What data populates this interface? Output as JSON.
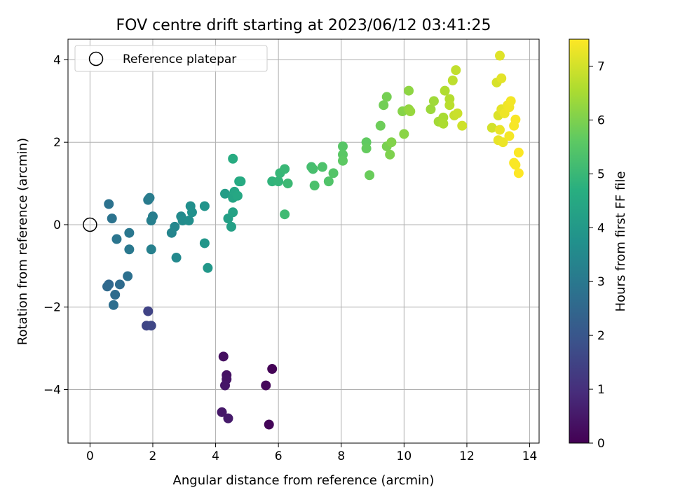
{
  "chart_data": {
    "type": "scatter",
    "title": "FOV centre drift starting at 2023/06/12 03:41:25",
    "xlabel": "Angular distance from reference (arcmin)",
    "ylabel": "Rotation from reference (arcmin)",
    "xlim": [
      -0.7,
      14.3
    ],
    "ylim": [
      -5.3,
      4.5
    ],
    "xticks": [
      0,
      2,
      4,
      6,
      8,
      10,
      12,
      14
    ],
    "yticks": [
      -4,
      -2,
      0,
      2,
      4
    ],
    "grid": true,
    "legend": {
      "position": "top-left",
      "entries": [
        "Reference platepar"
      ]
    },
    "reference_point": {
      "x": 0,
      "y": 0
    },
    "colorbar": {
      "label": "Hours from first FF file",
      "range": [
        0,
        7.5
      ],
      "ticks": [
        0,
        1,
        2,
        3,
        4,
        5,
        6,
        7
      ],
      "colormap": "viridis"
    },
    "points": [
      {
        "x": 5.8,
        "y": -3.5,
        "h": 0.05
      },
      {
        "x": 5.7,
        "y": -4.85,
        "h": 0.1
      },
      {
        "x": 5.6,
        "y": -3.9,
        "h": 0.15
      },
      {
        "x": 4.25,
        "y": -3.2,
        "h": 0.3
      },
      {
        "x": 4.35,
        "y": -3.65,
        "h": 0.35
      },
      {
        "x": 4.35,
        "y": -3.75,
        "h": 0.4
      },
      {
        "x": 4.3,
        "y": -3.9,
        "h": 0.45
      },
      {
        "x": 4.2,
        "y": -4.55,
        "h": 0.5
      },
      {
        "x": 4.4,
        "y": -4.7,
        "h": 0.55
      },
      {
        "x": 1.85,
        "y": -2.1,
        "h": 1.5
      },
      {
        "x": 1.8,
        "y": -2.45,
        "h": 1.55
      },
      {
        "x": 1.95,
        "y": -2.45,
        "h": 1.6
      },
      {
        "x": 0.6,
        "y": -1.45,
        "h": 2.5
      },
      {
        "x": 0.55,
        "y": -1.5,
        "h": 2.55
      },
      {
        "x": 0.95,
        "y": -1.45,
        "h": 2.6
      },
      {
        "x": 0.8,
        "y": -1.7,
        "h": 2.65
      },
      {
        "x": 0.75,
        "y": -1.95,
        "h": 2.7
      },
      {
        "x": 1.2,
        "y": -1.25,
        "h": 2.75
      },
      {
        "x": 0.6,
        "y": 0.5,
        "h": 2.8
      },
      {
        "x": 0.7,
        "y": 0.15,
        "h": 2.85
      },
      {
        "x": 0.85,
        "y": -0.35,
        "h": 2.9
      },
      {
        "x": 1.25,
        "y": -0.2,
        "h": 2.95
      },
      {
        "x": 1.25,
        "y": -0.6,
        "h": 3.0
      },
      {
        "x": 1.85,
        "y": 0.6,
        "h": 3.05
      },
      {
        "x": 1.9,
        "y": 0.65,
        "h": 3.1
      },
      {
        "x": 2.0,
        "y": 0.2,
        "h": 3.15
      },
      {
        "x": 1.95,
        "y": 0.1,
        "h": 3.2
      },
      {
        "x": 1.95,
        "y": -0.6,
        "h": 3.25
      },
      {
        "x": 2.6,
        "y": -0.2,
        "h": 3.4
      },
      {
        "x": 2.7,
        "y": -0.05,
        "h": 3.45
      },
      {
        "x": 2.75,
        "y": -0.8,
        "h": 3.5
      },
      {
        "x": 2.9,
        "y": 0.2,
        "h": 3.55
      },
      {
        "x": 2.95,
        "y": 0.1,
        "h": 3.6
      },
      {
        "x": 3.15,
        "y": 0.1,
        "h": 3.65
      },
      {
        "x": 3.2,
        "y": 0.45,
        "h": 3.7
      },
      {
        "x": 3.25,
        "y": 0.3,
        "h": 3.75
      },
      {
        "x": 3.65,
        "y": 0.45,
        "h": 3.85
      },
      {
        "x": 3.65,
        "y": -0.45,
        "h": 3.9
      },
      {
        "x": 3.75,
        "y": -1.05,
        "h": 3.95
      },
      {
        "x": 4.3,
        "y": 0.75,
        "h": 4.15
      },
      {
        "x": 4.4,
        "y": 0.15,
        "h": 4.2
      },
      {
        "x": 4.5,
        "y": -0.05,
        "h": 4.25
      },
      {
        "x": 4.55,
        "y": 0.3,
        "h": 4.3
      },
      {
        "x": 4.55,
        "y": 0.65,
        "h": 4.35
      },
      {
        "x": 4.6,
        "y": 0.8,
        "h": 4.4
      },
      {
        "x": 4.7,
        "y": 0.7,
        "h": 4.45
      },
      {
        "x": 4.75,
        "y": 1.05,
        "h": 4.5
      },
      {
        "x": 4.8,
        "y": 1.05,
        "h": 4.55
      },
      {
        "x": 4.55,
        "y": 1.6,
        "h": 4.6
      },
      {
        "x": 5.8,
        "y": 1.05,
        "h": 4.85
      },
      {
        "x": 6.0,
        "y": 1.05,
        "h": 4.9
      },
      {
        "x": 6.05,
        "y": 1.25,
        "h": 4.95
      },
      {
        "x": 6.2,
        "y": 1.35,
        "h": 5.0
      },
      {
        "x": 6.3,
        "y": 1.0,
        "h": 5.05
      },
      {
        "x": 6.2,
        "y": 0.25,
        "h": 5.1
      },
      {
        "x": 7.05,
        "y": 1.4,
        "h": 5.2
      },
      {
        "x": 7.1,
        "y": 1.35,
        "h": 5.25
      },
      {
        "x": 7.15,
        "y": 0.95,
        "h": 5.3
      },
      {
        "x": 7.4,
        "y": 1.4,
        "h": 5.35
      },
      {
        "x": 7.6,
        "y": 1.05,
        "h": 5.4
      },
      {
        "x": 7.75,
        "y": 1.25,
        "h": 5.45
      },
      {
        "x": 8.05,
        "y": 1.9,
        "h": 5.5
      },
      {
        "x": 8.05,
        "y": 1.7,
        "h": 5.55
      },
      {
        "x": 8.05,
        "y": 1.55,
        "h": 5.6
      },
      {
        "x": 8.8,
        "y": 2.0,
        "h": 5.65
      },
      {
        "x": 8.8,
        "y": 1.85,
        "h": 5.7
      },
      {
        "x": 8.9,
        "y": 1.2,
        "h": 5.75
      },
      {
        "x": 9.25,
        "y": 2.4,
        "h": 5.8
      },
      {
        "x": 9.35,
        "y": 2.9,
        "h": 5.85
      },
      {
        "x": 9.45,
        "y": 3.1,
        "h": 5.9
      },
      {
        "x": 9.45,
        "y": 1.9,
        "h": 5.95
      },
      {
        "x": 9.55,
        "y": 1.7,
        "h": 6.0
      },
      {
        "x": 9.6,
        "y": 2.0,
        "h": 6.05
      },
      {
        "x": 9.95,
        "y": 2.75,
        "h": 6.1
      },
      {
        "x": 10.0,
        "y": 2.2,
        "h": 6.15
      },
      {
        "x": 10.15,
        "y": 3.25,
        "h": 6.2
      },
      {
        "x": 10.15,
        "y": 2.8,
        "h": 6.25
      },
      {
        "x": 10.2,
        "y": 2.75,
        "h": 6.3
      },
      {
        "x": 10.85,
        "y": 2.8,
        "h": 6.35
      },
      {
        "x": 10.95,
        "y": 3.0,
        "h": 6.4
      },
      {
        "x": 11.1,
        "y": 2.5,
        "h": 6.45
      },
      {
        "x": 11.25,
        "y": 2.6,
        "h": 6.5
      },
      {
        "x": 11.25,
        "y": 2.45,
        "h": 6.55
      },
      {
        "x": 11.3,
        "y": 3.25,
        "h": 6.6
      },
      {
        "x": 11.45,
        "y": 3.05,
        "h": 6.65
      },
      {
        "x": 11.45,
        "y": 2.9,
        "h": 6.7
      },
      {
        "x": 11.55,
        "y": 3.5,
        "h": 6.75
      },
      {
        "x": 11.65,
        "y": 3.75,
        "h": 6.8
      },
      {
        "x": 11.6,
        "y": 2.65,
        "h": 6.85
      },
      {
        "x": 11.7,
        "y": 2.7,
        "h": 6.9
      },
      {
        "x": 11.85,
        "y": 2.4,
        "h": 6.95
      },
      {
        "x": 12.8,
        "y": 2.35,
        "h": 7.0
      },
      {
        "x": 12.95,
        "y": 3.45,
        "h": 7.05
      },
      {
        "x": 13.0,
        "y": 2.65,
        "h": 7.1
      },
      {
        "x": 13.05,
        "y": 4.1,
        "h": 7.15
      },
      {
        "x": 13.1,
        "y": 3.55,
        "h": 7.2
      },
      {
        "x": 13.1,
        "y": 2.8,
        "h": 7.22
      },
      {
        "x": 13.0,
        "y": 2.05,
        "h": 7.25
      },
      {
        "x": 13.05,
        "y": 2.3,
        "h": 7.28
      },
      {
        "x": 13.15,
        "y": 2.0,
        "h": 7.3
      },
      {
        "x": 13.2,
        "y": 2.7,
        "h": 7.32
      },
      {
        "x": 13.3,
        "y": 2.9,
        "h": 7.34
      },
      {
        "x": 13.35,
        "y": 2.85,
        "h": 7.36
      },
      {
        "x": 13.4,
        "y": 3.0,
        "h": 7.38
      },
      {
        "x": 13.35,
        "y": 2.15,
        "h": 7.4
      },
      {
        "x": 13.5,
        "y": 2.4,
        "h": 7.42
      },
      {
        "x": 13.55,
        "y": 2.55,
        "h": 7.44
      },
      {
        "x": 13.5,
        "y": 1.5,
        "h": 7.46
      },
      {
        "x": 13.55,
        "y": 1.45,
        "h": 7.47
      },
      {
        "x": 13.65,
        "y": 1.75,
        "h": 7.48
      },
      {
        "x": 13.65,
        "y": 1.25,
        "h": 7.5
      }
    ]
  }
}
